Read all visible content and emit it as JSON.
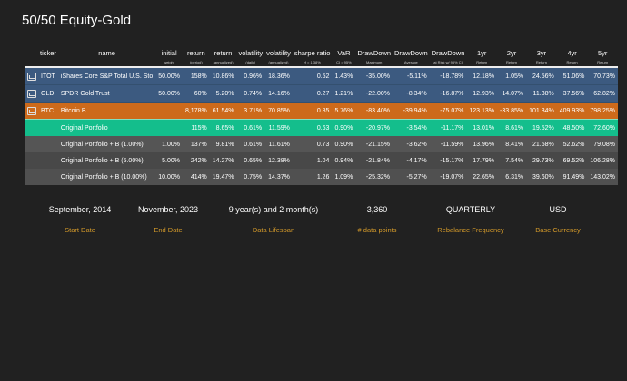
{
  "title": "50/50 Equity-Gold",
  "columns": [
    {
      "main": "",
      "sub": ""
    },
    {
      "main": "ticker",
      "sub": ""
    },
    {
      "main": "name",
      "sub": ""
    },
    {
      "main": "initial",
      "sub": "weight"
    },
    {
      "main": "return",
      "sub": "(period)"
    },
    {
      "main": "return",
      "sub": "(annualized)"
    },
    {
      "main": "volatility",
      "sub": "(daily)"
    },
    {
      "main": "volatility",
      "sub": "(annualized)"
    },
    {
      "main": "sharpe ratio",
      "sub": "rf = 1.38%"
    },
    {
      "main": "VaR",
      "sub": "CI = 95%"
    },
    {
      "main": "DrawDown",
      "sub": "Maximum"
    },
    {
      "main": "DrawDown",
      "sub": "Average"
    },
    {
      "main": "DrawDown",
      "sub": "at Risk w/ 95% CI"
    },
    {
      "main": "1yr",
      "sub": "Return"
    },
    {
      "main": "2yr",
      "sub": "Return"
    },
    {
      "main": "3yr",
      "sub": "Return"
    },
    {
      "main": "4yr",
      "sub": "Return"
    },
    {
      "main": "5yr",
      "sub": "Return"
    }
  ],
  "rows": [
    {
      "cls": "asset",
      "icon": "chart-icon",
      "cells": [
        "ITOT",
        "iShares Core S&P Total U.S. Sto",
        "50.00%",
        "158%",
        "10.86%",
        "0.96%",
        "18.36%",
        "0.52",
        "1.43%",
        "-35.00%",
        "-5.11%",
        "-18.78%",
        "12.18%",
        "1.05%",
        "24.56%",
        "51.06%",
        "70.73%"
      ]
    },
    {
      "cls": "asset",
      "icon": "chart-icon",
      "cells": [
        "GLD",
        "SPDR Gold Trust",
        "50.00%",
        "60%",
        "5.20%",
        "0.74%",
        "14.16%",
        "0.27",
        "1.21%",
        "-22.00%",
        "-8.34%",
        "-16.87%",
        "12.93%",
        "14.07%",
        "11.38%",
        "37.56%",
        "62.82%"
      ]
    },
    {
      "cls": "btc",
      "icon": "chart-icon",
      "cells": [
        "BTC",
        "Bitcoin B",
        "",
        "8,178%",
        "61.54%",
        "3.71%",
        "70.85%",
        "0.85",
        "5.76%",
        "-83.40%",
        "-39.94%",
        "-75.07%",
        "123.13%",
        "-33.85%",
        "101.34%",
        "409.93%",
        "798.25%"
      ]
    },
    {
      "cls": "orig",
      "icon": "",
      "cells": [
        "",
        "Original Portfolio",
        "",
        "115%",
        "8.65%",
        "0.61%",
        "11.59%",
        "0.63",
        "0.90%",
        "-20.97%",
        "-3.54%",
        "-11.17%",
        "13.01%",
        "8.61%",
        "19.52%",
        "48.50%",
        "72.60%"
      ]
    },
    {
      "cls": "g0",
      "icon": "",
      "cells": [
        "",
        "Original Portfolio + B (1.00%)",
        "1.00%",
        "137%",
        "9.81%",
        "0.61%",
        "11.61%",
        "0.73",
        "0.90%",
        "-21.15%",
        "-3.62%",
        "-11.59%",
        "13.96%",
        "8.41%",
        "21.58%",
        "52.62%",
        "79.08%"
      ]
    },
    {
      "cls": "g1",
      "icon": "",
      "cells": [
        "",
        "Original Portfolio + B (5.00%)",
        "5.00%",
        "242%",
        "14.27%",
        "0.65%",
        "12.38%",
        "1.04",
        "0.94%",
        "-21.84%",
        "-4.17%",
        "-15.17%",
        "17.79%",
        "7.54%",
        "29.73%",
        "69.52%",
        "106.28%"
      ]
    },
    {
      "cls": "g2",
      "icon": "",
      "cells": [
        "",
        "Original Portfolio + B (10.00%)",
        "10.00%",
        "414%",
        "19.47%",
        "0.75%",
        "14.37%",
        "1.26",
        "1.09%",
        "-25.32%",
        "-5.27%",
        "-19.07%",
        "22.65%",
        "6.31%",
        "39.60%",
        "91.49%",
        "143.02%"
      ]
    }
  ],
  "stats": [
    {
      "value": "September, 2014",
      "label": "Start Date"
    },
    {
      "value": "November, 2023",
      "label": "End Date"
    },
    {
      "value": "9 year(s) and 2 month(s)",
      "label": "Data Lifespan"
    },
    {
      "value": "3,360",
      "label": "# data points"
    },
    {
      "value": "QUARTERLY",
      "label": "Rebalance Frequency"
    },
    {
      "value": "USD",
      "label": "Base Currency"
    }
  ]
}
